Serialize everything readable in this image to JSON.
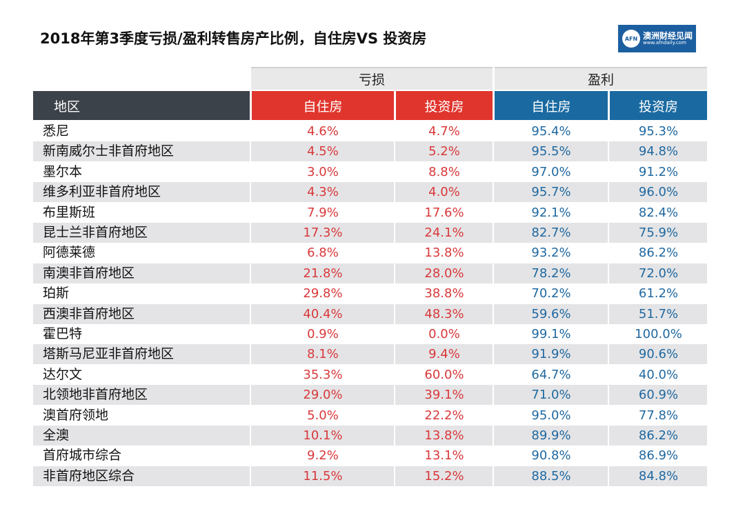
{
  "title": "2018年第3季度亏损/盈利转售房产比例，自住房VS 投资房",
  "logo": {
    "badge": "AFN",
    "name": "澳洲财经见闻",
    "url": "www.afndaily.com"
  },
  "colors": {
    "loss_header": "#e0352d",
    "profit_header": "#1a6aa1",
    "region_header": "#3c4249",
    "loss_text": "#d9383a",
    "profit_text": "#1f68a0"
  },
  "chart_data": {
    "type": "table",
    "title": "2018年第3季度亏损/盈利转售房产比例，自住房VS 投资房",
    "groups": [
      "亏损",
      "盈利"
    ],
    "columns": [
      "地区",
      "自住房",
      "投资房",
      "自住房",
      "投资房"
    ],
    "rows": [
      [
        "悉尼",
        "4.6%",
        "4.7%",
        "95.4%",
        "95.3%"
      ],
      [
        "新南威尔士非首府地区",
        "4.5%",
        "5.2%",
        "95.5%",
        "94.8%"
      ],
      [
        "墨尔本",
        "3.0%",
        "8.8%",
        "97.0%",
        "91.2%"
      ],
      [
        "维多利亚非首府地区",
        "4.3%",
        "4.0%",
        "95.7%",
        "96.0%"
      ],
      [
        "布里斯班",
        "7.9%",
        "17.6%",
        "92.1%",
        "82.4%"
      ],
      [
        "昆士兰非首府地区",
        "17.3%",
        "24.1%",
        "82.7%",
        "75.9%"
      ],
      [
        "阿德莱德",
        "6.8%",
        "13.8%",
        "93.2%",
        "86.2%"
      ],
      [
        "南澳非首府地区",
        "21.8%",
        "28.0%",
        "78.2%",
        "72.0%"
      ],
      [
        "珀斯",
        "29.8%",
        "38.8%",
        "70.2%",
        "61.2%"
      ],
      [
        "西澳非首府地区",
        "40.4%",
        "48.3%",
        "59.6%",
        "51.7%"
      ],
      [
        "霍巴特",
        "0.9%",
        "0.0%",
        "99.1%",
        "100.0%"
      ],
      [
        "塔斯马尼亚非首府地区",
        "8.1%",
        "9.4%",
        "91.9%",
        "90.6%"
      ],
      [
        "达尔文",
        "35.3%",
        "60.0%",
        "64.7%",
        "40.0%"
      ],
      [
        "北领地非首府地区",
        "29.0%",
        "39.1%",
        "71.0%",
        "60.9%"
      ],
      [
        "澳首府领地",
        "5.0%",
        "22.2%",
        "95.0%",
        "77.8%"
      ],
      [
        "全澳",
        "10.1%",
        "13.8%",
        "89.9%",
        "86.2%"
      ],
      [
        "首府城市综合",
        "9.2%",
        "13.1%",
        "90.8%",
        "86.9%"
      ],
      [
        "非首府地区综合",
        "11.5%",
        "15.2%",
        "88.5%",
        "84.8%"
      ]
    ]
  }
}
